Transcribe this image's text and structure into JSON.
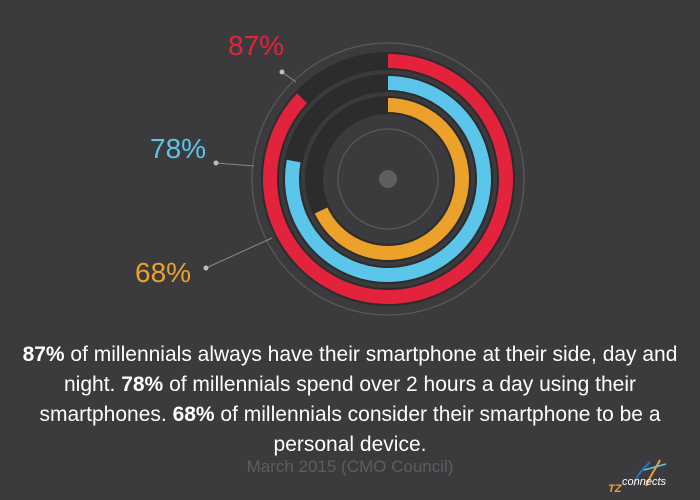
{
  "chart_data": {
    "type": "radial-bar",
    "series": [
      {
        "value": 87,
        "label": "87%",
        "color": "#e3223c"
      },
      {
        "value": 78,
        "label": "78%",
        "color": "#5bc5ea"
      },
      {
        "value": 68,
        "label": "68%",
        "color": "#eba12a"
      }
    ],
    "max": 100
  },
  "colors": {
    "background": "#3b3b3d",
    "track": "#2c2c2e"
  },
  "text": {
    "p1_pct": "87%",
    "p1_text": " of millennials always have their smartphone at their side, day and night. ",
    "p2_pct": "78%",
    "p2_text": " of millennials spend over 2 hours a day using their smartphones. ",
    "p3_pct": "68%",
    "p3_text": " of millennials consider their smartphone to be a personal device."
  },
  "source": "March 2015 (CMO Council)",
  "logo": {
    "mark": "TZ",
    "text": "connects"
  }
}
